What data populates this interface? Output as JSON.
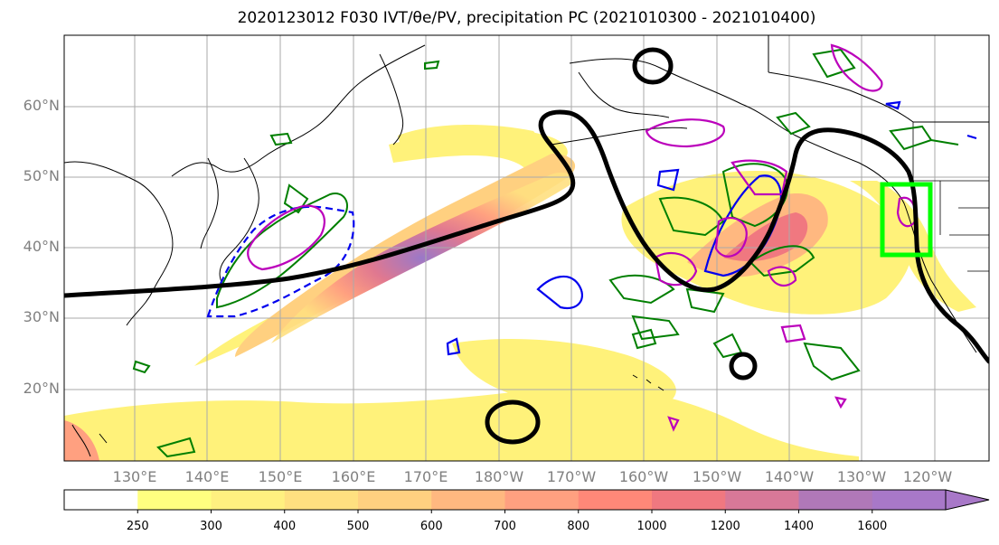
{
  "title": "2020123012 F030 IVT/θe/PV, precipitation PC (2021010300 - 2021010400)",
  "map": {
    "lat_labels": [
      "60°N",
      "50°N",
      "40°N",
      "30°N",
      "20°N"
    ],
    "lon_labels": [
      "130°E",
      "140°E",
      "150°E",
      "160°E",
      "170°E",
      "180°W",
      "170°W",
      "160°W",
      "150°W",
      "140°W",
      "130°W",
      "120°W"
    ],
    "fill_variable": "IVT",
    "contours": {
      "theta_e": "black",
      "positive_pc": "green",
      "pv_anomaly": "magenta",
      "negative_pc": "blue"
    },
    "highlight_box_color": "#00ff00"
  },
  "colorbar": {
    "levels": [
      "250",
      "300",
      "400",
      "500",
      "600",
      "700",
      "800",
      "1000",
      "1200",
      "1400",
      "1600"
    ],
    "colors": [
      "#ffffff",
      "#ffff80",
      "#fff080",
      "#ffe080",
      "#ffd080",
      "#ffb880",
      "#ffa080",
      "#ff8878",
      "#f07880",
      "#d87898",
      "#b078b8",
      "#a878c8"
    ],
    "extend": "max"
  }
}
